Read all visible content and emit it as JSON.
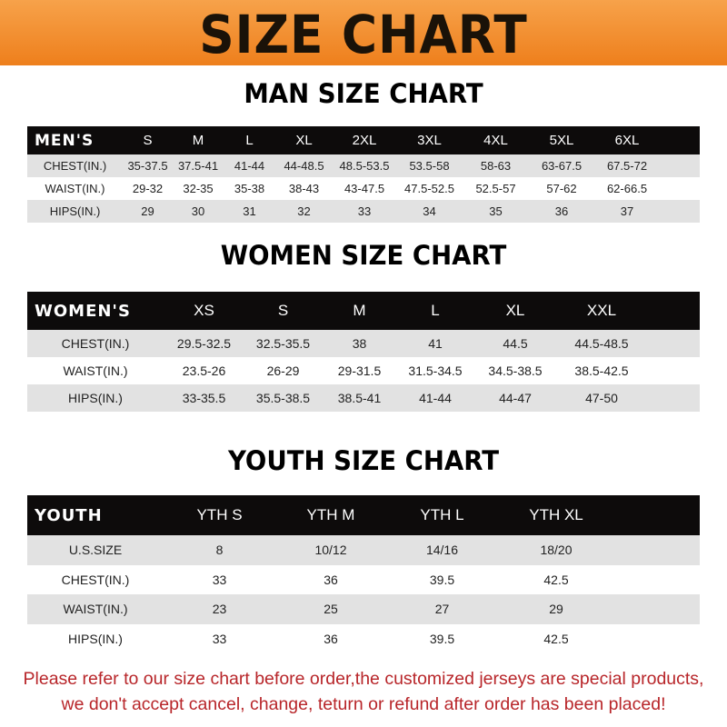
{
  "title": "SIZE CHART",
  "colors": {
    "banner": "#f08a24",
    "header_row": "#0d0b0b",
    "note": "#b8262a"
  },
  "men": {
    "title": "MAN SIZE CHART",
    "header": [
      "MEN'S",
      "S",
      "M",
      "L",
      "XL",
      "2XL",
      "3XL",
      "4XL",
      "5XL",
      "6XL"
    ],
    "rows": [
      [
        "CHEST(IN.)",
        "35-37.5",
        "37.5-41",
        "41-44",
        "44-48.5",
        "48.5-53.5",
        "53.5-58",
        "58-63",
        "63-67.5",
        "67.5-72"
      ],
      [
        "WAIST(IN.)",
        "29-32",
        "32-35",
        "35-38",
        "38-43",
        "43-47.5",
        "47.5-52.5",
        "52.5-57",
        "57-62",
        "62-66.5"
      ],
      [
        "HIPS(IN.)",
        "29",
        "30",
        "31",
        "32",
        "33",
        "34",
        "35",
        "36",
        "37"
      ]
    ]
  },
  "women": {
    "title": "WOMEN SIZE CHART",
    "header": [
      "WOMEN'S",
      "XS",
      "S",
      "M",
      "L",
      "XL",
      "XXL"
    ],
    "rows": [
      [
        "CHEST(IN.)",
        "29.5-32.5",
        "32.5-35.5",
        "38",
        "41",
        "44.5",
        "44.5-48.5"
      ],
      [
        "WAIST(IN.)",
        "23.5-26",
        "26-29",
        "29-31.5",
        "31.5-34.5",
        "34.5-38.5",
        "38.5-42.5"
      ],
      [
        "HIPS(IN.)",
        "33-35.5",
        "35.5-38.5",
        "38.5-41",
        "41-44",
        "44-47",
        "47-50"
      ]
    ]
  },
  "youth": {
    "title": "YOUTH SIZE CHART",
    "header": [
      "YOUTH",
      "YTH S",
      "YTH M",
      "YTH L",
      "YTH XL"
    ],
    "rows": [
      [
        "U.S.SIZE",
        "8",
        "10/12",
        "14/16",
        "18/20"
      ],
      [
        "CHEST(IN.)",
        "33",
        "36",
        "39.5",
        "42.5"
      ],
      [
        "WAIST(IN.)",
        "23",
        "25",
        "27",
        "29"
      ],
      [
        "HIPS(IN.)",
        "33",
        "36",
        "39.5",
        "42.5"
      ]
    ]
  },
  "note": {
    "line1": "Please refer to our size chart before order,the customized jerseys are special products,",
    "line2": "we don't accept cancel, change, teturn or refund after order has been placed!"
  }
}
